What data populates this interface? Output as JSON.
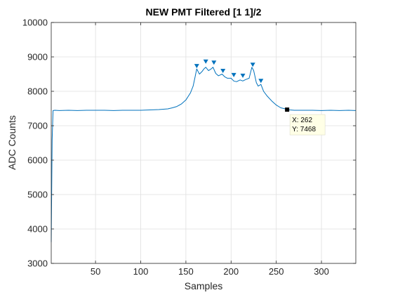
{
  "chart_data": {
    "type": "line",
    "title": "NEW PMT Filtered [1 1]/2",
    "xlabel": "Samples",
    "ylabel": "ADC Counts",
    "xlim": [
      1,
      338
    ],
    "ylim": [
      3000,
      10000
    ],
    "xticks": [
      50,
      100,
      150,
      200,
      250,
      300
    ],
    "xtick_labels": [
      "50",
      "100",
      "150",
      "200",
      "250",
      "300"
    ],
    "yticks": [
      3000,
      4000,
      5000,
      6000,
      7000,
      8000,
      9000,
      10000
    ],
    "ytick_labels": [
      "3000",
      "4000",
      "5000",
      "6000",
      "7000",
      "8000",
      "9000",
      "10000"
    ],
    "grid": true,
    "series": [
      {
        "color": "#0072bd",
        "x": [
          1,
          2,
          3,
          5,
          10,
          20,
          30,
          40,
          50,
          60,
          70,
          80,
          90,
          100,
          110,
          120,
          130,
          135,
          140,
          145,
          150,
          155,
          158,
          160,
          162,
          165,
          168,
          170,
          172,
          175,
          178,
          180,
          183,
          186,
          190,
          193,
          196,
          200,
          203,
          206,
          210,
          213,
          216,
          220,
          223,
          225,
          228,
          230,
          233,
          236,
          240,
          245,
          250,
          255,
          260,
          262,
          265,
          270,
          280,
          290,
          300,
          310,
          320,
          330,
          338
        ],
        "y": [
          3620,
          6600,
          7440,
          7450,
          7440,
          7450,
          7440,
          7450,
          7450,
          7450,
          7440,
          7450,
          7450,
          7450,
          7460,
          7470,
          7490,
          7520,
          7560,
          7630,
          7750,
          7950,
          8150,
          8400,
          8650,
          8500,
          8580,
          8650,
          8700,
          8600,
          8650,
          8700,
          8520,
          8450,
          8500,
          8420,
          8380,
          8380,
          8300,
          8280,
          8330,
          8300,
          8340,
          8380,
          8700,
          8600,
          8250,
          8150,
          8200,
          8000,
          7860,
          7720,
          7600,
          7520,
          7490,
          7468,
          7460,
          7450,
          7450,
          7450,
          7440,
          7450,
          7440,
          7450,
          7440
        ]
      }
    ],
    "peaks": {
      "color": "#0072bd",
      "x": [
        162,
        172,
        181,
        191,
        203,
        213,
        224,
        233
      ],
      "y": [
        8650,
        8780,
        8750,
        8510,
        8390,
        8370,
        8690,
        8220
      ]
    },
    "data_tip": {
      "x": 262,
      "y": 7468,
      "x_text": "X: 262",
      "y_text": "Y: 7468"
    }
  }
}
